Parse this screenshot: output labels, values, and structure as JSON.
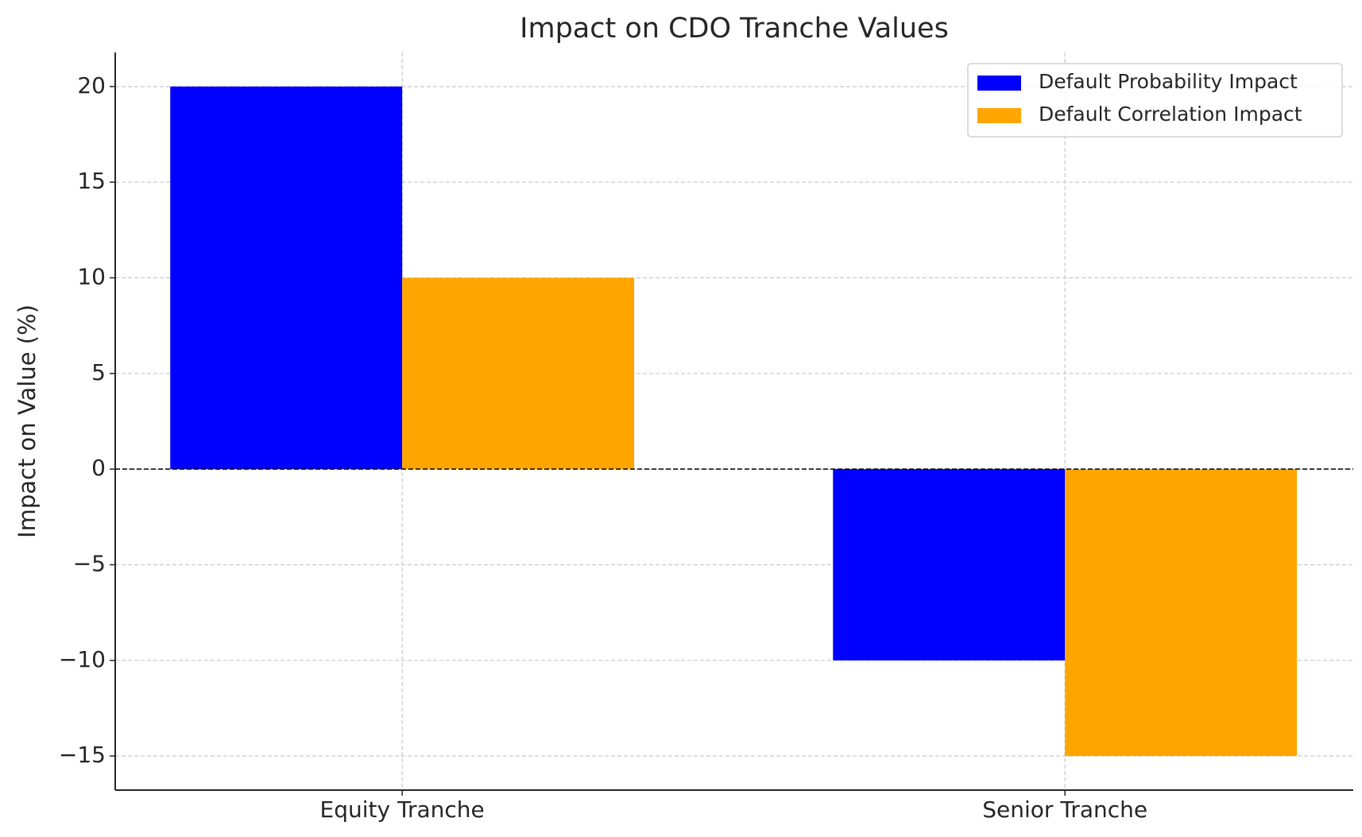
{
  "chart_data": {
    "type": "bar",
    "title": "Impact on CDO Tranche Values",
    "y_label": "Impact on Value (%)",
    "categories": [
      "Equity Tranche",
      "Senior Tranche"
    ],
    "series": [
      {
        "name": "Default Probability Impact",
        "color": "#0000ff",
        "values": [
          20,
          -10
        ]
      },
      {
        "name": "Default Correlation Impact",
        "color": "#ffa500",
        "values": [
          10,
          -15
        ]
      }
    ],
    "ylim": [
      -16.78,
      21.78
    ],
    "yticks": [
      {
        "value": -15,
        "label": "−15"
      },
      {
        "value": -10,
        "label": "−10"
      },
      {
        "value": -5,
        "label": "−5"
      },
      0,
      5,
      10,
      15,
      20
    ],
    "grid": true,
    "legend": "upper right"
  }
}
